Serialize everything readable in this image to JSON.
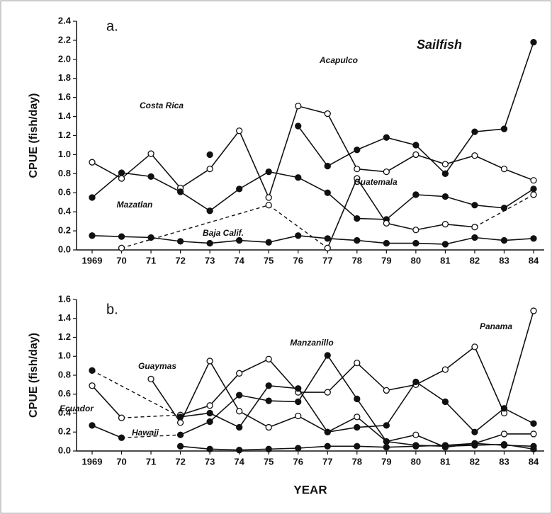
{
  "chart_data": [
    {
      "type": "line",
      "panel_label": "a.",
      "subtitle": "Sailfish",
      "y_label": "CPUE (fish/day)",
      "categories": [
        "1969",
        "70",
        "71",
        "72",
        "73",
        "74",
        "75",
        "76",
        "77",
        "78",
        "79",
        "80",
        "81",
        "82",
        "83",
        "84"
      ],
      "ylim": [
        0,
        2.4
      ],
      "yticks": [
        {
          "value": 0,
          "label": "0.0"
        },
        {
          "value": 0.2,
          "label": "0.2"
        },
        {
          "value": 0.4,
          "label": "0.4"
        },
        {
          "value": 0.6,
          "label": "0.6"
        },
        {
          "value": 0.8,
          "label": "0.8"
        },
        {
          "value": 1.0,
          "label": "1.0"
        },
        {
          "value": 1.2,
          "label": "1.2"
        },
        {
          "value": 1.4,
          "label": "1.4"
        },
        {
          "value": 1.6,
          "label": "1.6"
        },
        {
          "value": 1.8,
          "label": "1.8"
        },
        {
          "value": 2.0,
          "label": "2.0"
        },
        {
          "value": 2.2,
          "label": "2.2"
        },
        {
          "value": 2.4,
          "label": "2.4"
        }
      ],
      "series": [
        {
          "name": "Costa Rica",
          "color": "#111",
          "marker": "filled",
          "values": [
            null,
            null,
            null,
            null,
            1.0,
            null,
            null,
            1.3,
            0.88,
            1.05,
            1.18,
            1.1,
            0.8,
            1.24,
            1.27,
            2.18
          ]
        },
        {
          "name": "Acapulco",
          "color": "#111",
          "marker": "open",
          "values": [
            0.92,
            0.75,
            1.01,
            0.65,
            0.85,
            1.25,
            0.55,
            1.51,
            1.43,
            0.85,
            0.82,
            1.0,
            0.9,
            0.99,
            0.85,
            0.73
          ]
        },
        {
          "name": "Mazatlan",
          "color": "#111",
          "marker": "filled",
          "values": [
            0.55,
            0.81,
            0.77,
            0.61,
            0.41,
            0.64,
            0.82,
            0.76,
            0.6,
            0.33,
            0.32,
            0.58,
            0.56,
            0.47,
            0.44,
            0.64
          ]
        },
        {
          "name": "Guatemala",
          "color": "#111",
          "marker": "open",
          "gap_style": "dashed",
          "values": [
            null,
            0.02,
            null,
            null,
            null,
            null,
            0.47,
            null,
            0.02,
            0.75,
            0.28,
            0.21,
            0.27,
            0.24,
            null,
            0.58
          ]
        },
        {
          "name": "Baja Calif.",
          "color": "#111",
          "marker": "filled",
          "values": [
            0.15,
            0.14,
            0.13,
            0.09,
            0.07,
            0.1,
            0.08,
            0.15,
            0.12,
            0.1,
            0.07,
            0.07,
            0.06,
            0.13,
            0.1,
            0.12
          ]
        }
      ]
    },
    {
      "type": "line",
      "panel_label": "b.",
      "y_label": "CPUE (fish/day)",
      "x_label": "YEAR",
      "categories": [
        "1969",
        "70",
        "71",
        "72",
        "73",
        "74",
        "75",
        "76",
        "77",
        "78",
        "79",
        "80",
        "81",
        "82",
        "83",
        "84"
      ],
      "ylim": [
        0,
        1.6
      ],
      "yticks": [
        {
          "value": 0,
          "label": "0.0"
        },
        {
          "value": 0.2,
          "label": "0.2"
        },
        {
          "value": 0.4,
          "label": "0.4"
        },
        {
          "value": 0.6,
          "label": "0.6"
        },
        {
          "value": 0.8,
          "label": "0.8"
        },
        {
          "value": 1.0,
          "label": "1.0"
        },
        {
          "value": 1.2,
          "label": "1.2"
        },
        {
          "value": 1.4,
          "label": "1.4"
        },
        {
          "value": 1.6,
          "label": "1.6"
        }
      ],
      "series": [
        {
          "name": "Guaymas",
          "color": "#111",
          "marker": "open",
          "values": [
            null,
            null,
            0.76,
            0.3,
            0.95,
            0.42,
            0.25,
            0.37,
            0.2,
            0.36,
            0.1,
            0.17,
            0.04,
            0.08,
            0.18,
            0.18
          ]
        },
        {
          "name": "Panama",
          "color": "#111",
          "marker": "open",
          "gap_style": "dashed",
          "values": [
            0.69,
            0.35,
            null,
            0.38,
            0.48,
            0.82,
            0.97,
            0.62,
            0.62,
            0.93,
            0.64,
            0.7,
            0.86,
            1.1,
            0.4,
            1.48
          ]
        },
        {
          "name": "Manzanillo",
          "color": "#111",
          "marker": "filled",
          "gap_style": "dashed",
          "values": [
            0.85,
            null,
            null,
            0.36,
            0.4,
            0.25,
            0.69,
            0.66,
            0.2,
            0.25,
            0.27,
            0.73,
            0.52,
            0.2,
            0.45,
            0.29
          ]
        },
        {
          "name": "Ecuador",
          "color": "#111",
          "marker": "filled",
          "gap_style": "dashed",
          "values": [
            0.27,
            0.14,
            null,
            0.17,
            0.31,
            0.59,
            0.53,
            0.52,
            1.01,
            0.55,
            0.1,
            0.06,
            0.05,
            0.06,
            0.07,
            0.02
          ]
        },
        {
          "name": "Hawaii",
          "color": "#111",
          "marker": "filled",
          "values": [
            null,
            null,
            null,
            0.05,
            0.02,
            0.01,
            0.02,
            0.03,
            0.05,
            0.05,
            0.04,
            0.05,
            0.06,
            0.08,
            0.06,
            0.05
          ]
        }
      ]
    }
  ]
}
